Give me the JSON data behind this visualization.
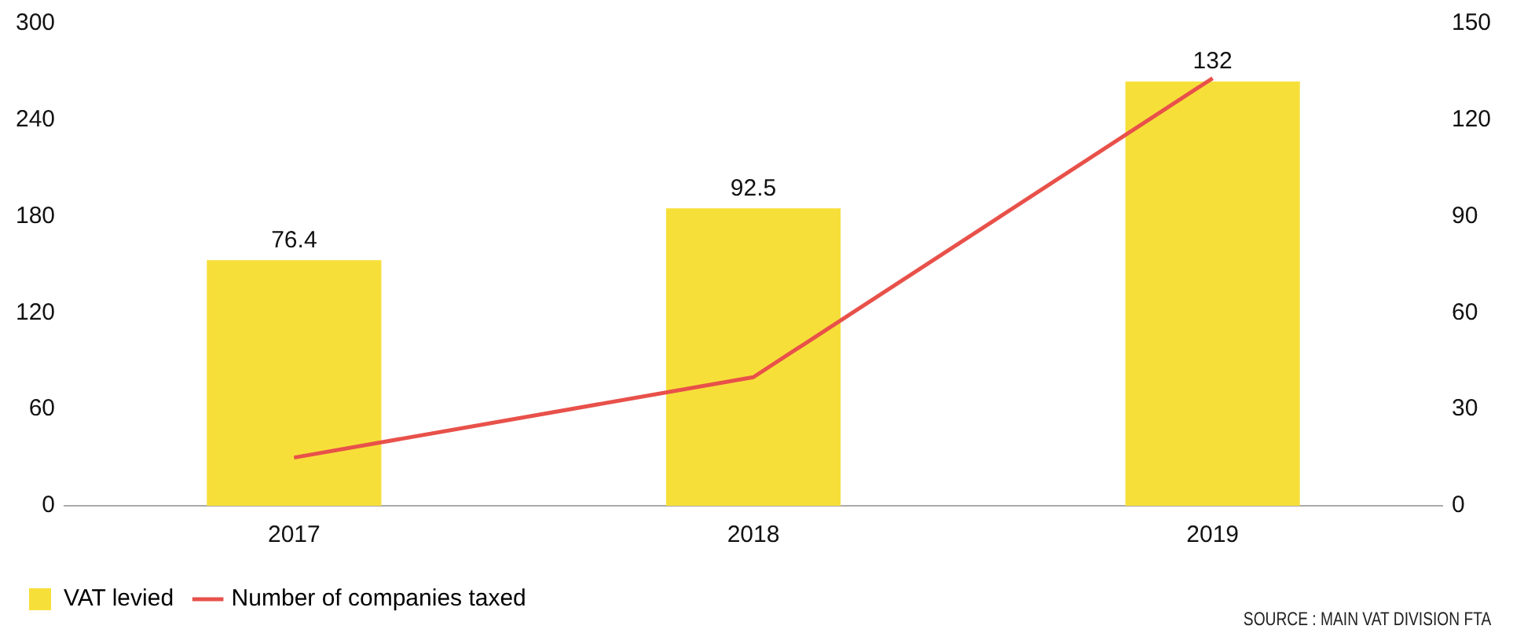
{
  "chart_data": {
    "type": "bar",
    "categories": [
      "2017",
      "2018",
      "2019"
    ],
    "series": [
      {
        "name": "VAT levied",
        "axis": "y2",
        "color": "#f7df3a",
        "values": [
          76.4,
          92.5,
          132
        ],
        "value_labels": [
          "76.4",
          "92.5",
          "132"
        ]
      },
      {
        "name": "Number of companies taxed",
        "type": "line",
        "axis": "y",
        "color": "#e8514a",
        "values": [
          30,
          80,
          266
        ]
      }
    ],
    "ylim": [
      0,
      300
    ],
    "yticks": [
      0,
      60,
      120,
      180,
      240,
      300
    ],
    "y2lim": [
      0,
      150
    ],
    "y2ticks": [
      0,
      30,
      60,
      90,
      120,
      150
    ],
    "grid": false,
    "legend": "bottom",
    "marker": "none",
    "annotations": [
      "SOURCE : MAIN VAT DIVISION FTA"
    ]
  }
}
